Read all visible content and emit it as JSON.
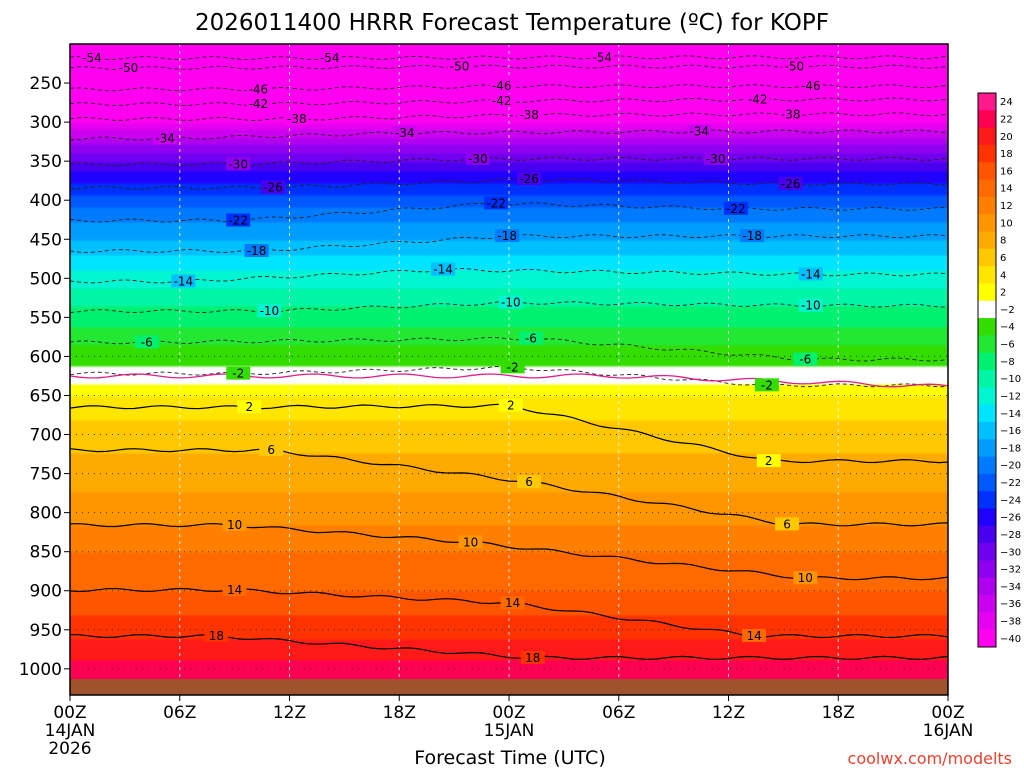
{
  "chart_data": {
    "type": "heatmap",
    "title": "2026011400 HRRR Forecast Temperature (ºC) for KOPF",
    "xlabel": "Forecast Time (UTC)",
    "ylabel": "",
    "credit": "coolwx.com/modelts",
    "x_ticks": [
      {
        "hour": 0,
        "label": "00Z",
        "sub1": "14JAN",
        "sub2": "2026"
      },
      {
        "hour": 6,
        "label": "06Z",
        "sub1": "",
        "sub2": ""
      },
      {
        "hour": 12,
        "label": "12Z",
        "sub1": "",
        "sub2": ""
      },
      {
        "hour": 18,
        "label": "18Z",
        "sub1": "",
        "sub2": ""
      },
      {
        "hour": 24,
        "label": "00Z",
        "sub1": "15JAN",
        "sub2": ""
      },
      {
        "hour": 30,
        "label": "06Z",
        "sub1": "",
        "sub2": ""
      },
      {
        "hour": 36,
        "label": "12Z",
        "sub1": "",
        "sub2": ""
      },
      {
        "hour": 42,
        "label": "18Z",
        "sub1": "",
        "sub2": ""
      },
      {
        "hour": 48,
        "label": "00Z",
        "sub1": "16JAN",
        "sub2": ""
      }
    ],
    "x_range_hours": [
      0,
      48
    ],
    "y_ticks_hpa": [
      250,
      300,
      350,
      400,
      450,
      500,
      550,
      600,
      650,
      700,
      750,
      800,
      850,
      900,
      950,
      1000
    ],
    "y_range_hpa": [
      200,
      1013
    ],
    "colorbar": {
      "units": "ºC",
      "labels": [
        "24",
        "22",
        "20",
        "18",
        "16",
        "14",
        "12",
        "10",
        "8",
        "6",
        "4",
        "2",
        "−2",
        "−4",
        "−6",
        "−8",
        "−10",
        "−12",
        "−14",
        "−16",
        "−18",
        "−20",
        "−22",
        "−24",
        "−26",
        "−28",
        "−30",
        "−32",
        "−34",
        "−36",
        "−38",
        "−40"
      ],
      "colors": [
        "#ff1a8c",
        "#ff0055",
        "#ff1a1a",
        "#ff3300",
        "#ff5500",
        "#ff6a00",
        "#ff8000",
        "#ff9500",
        "#ffaa00",
        "#ffc800",
        "#ffe600",
        "#ffff00",
        "#ffffff",
        "#33dd00",
        "#22e833",
        "#00f070",
        "#00f5a5",
        "#00f5d0",
        "#00e5ff",
        "#00c0ff",
        "#009dff",
        "#007aff",
        "#0058ff",
        "#0030ff",
        "#2000ff",
        "#4a00f0",
        "#7000f0",
        "#9000f0",
        "#b000f0",
        "#cc00f0",
        "#e600f0",
        "#ff00f0"
      ]
    },
    "temperature_profile": [
      {
        "hpa": 1000,
        "temp_c": 21
      },
      {
        "hpa": 950,
        "temp_c": 17
      },
      {
        "hpa": 900,
        "temp_c": 14
      },
      {
        "hpa": 850,
        "temp_c": 12
      },
      {
        "hpa": 800,
        "temp_c": 9
      },
      {
        "hpa": 750,
        "temp_c": 7
      },
      {
        "hpa": 700,
        "temp_c": 5
      },
      {
        "hpa": 650,
        "temp_c": 2
      },
      {
        "hpa": 625,
        "temp_c": 0
      },
      {
        "hpa": 600,
        "temp_c": -2
      },
      {
        "hpa": 550,
        "temp_c": -6
      },
      {
        "hpa": 500,
        "temp_c": -10
      },
      {
        "hpa": 450,
        "temp_c": -15
      },
      {
        "hpa": 400,
        "temp_c": -20
      },
      {
        "hpa": 350,
        "temp_c": -27
      },
      {
        "hpa": 300,
        "temp_c": -37
      },
      {
        "hpa": 250,
        "temp_c": -46
      },
      {
        "hpa": 225,
        "temp_c": -50
      },
      {
        "hpa": 210,
        "temp_c": -54
      }
    ],
    "contour_labels": [
      {
        "value": "-54",
        "hour": 1.2,
        "hpa": 218
      },
      {
        "value": "-54",
        "hour": 14.2,
        "hpa": 218
      },
      {
        "value": "-54",
        "hour": 29.1,
        "hpa": 217
      },
      {
        "value": "-50",
        "hour": 3.2,
        "hpa": 231
      },
      {
        "value": "-50",
        "hour": 21.3,
        "hpa": 229
      },
      {
        "value": "-50",
        "hour": 39.6,
        "hpa": 229
      },
      {
        "value": "-46",
        "hour": 10.3,
        "hpa": 258
      },
      {
        "value": "-46",
        "hour": 23.6,
        "hpa": 254
      },
      {
        "value": "-46",
        "hour": 40.5,
        "hpa": 254
      },
      {
        "value": "-42",
        "hour": 10.3,
        "hpa": 277
      },
      {
        "value": "-42",
        "hour": 23.6,
        "hpa": 273
      },
      {
        "value": "-42",
        "hour": 37.6,
        "hpa": 271
      },
      {
        "value": "-38",
        "hour": 12.4,
        "hpa": 296
      },
      {
        "value": "-38",
        "hour": 25.1,
        "hpa": 291
      },
      {
        "value": "-38",
        "hour": 39.4,
        "hpa": 290
      },
      {
        "value": "-34",
        "hour": 5.2,
        "hpa": 321
      },
      {
        "value": "-34",
        "hour": 18.3,
        "hpa": 314
      },
      {
        "value": "-34",
        "hour": 34.4,
        "hpa": 312
      },
      {
        "value": "-30",
        "hour": 9.2,
        "hpa": 354
      },
      {
        "value": "-30",
        "hour": 22.3,
        "hpa": 347
      },
      {
        "value": "-30",
        "hour": 35.3,
        "hpa": 347
      },
      {
        "value": "-26",
        "hour": 11.1,
        "hpa": 384
      },
      {
        "value": "-26",
        "hour": 25.1,
        "hpa": 373
      },
      {
        "value": "-26",
        "hour": 39.4,
        "hpa": 379
      },
      {
        "value": "-22",
        "hour": 9.2,
        "hpa": 426
      },
      {
        "value": "-22",
        "hour": 23.3,
        "hpa": 404
      },
      {
        "value": "-22",
        "hour": 36.4,
        "hpa": 411
      },
      {
        "value": "-18",
        "hour": 10.2,
        "hpa": 465
      },
      {
        "value": "-18",
        "hour": 23.9,
        "hpa": 446
      },
      {
        "value": "-18",
        "hour": 37.3,
        "hpa": 446
      },
      {
        "value": "-14",
        "hour": 6.2,
        "hpa": 504
      },
      {
        "value": "-14",
        "hour": 20.4,
        "hpa": 489
      },
      {
        "value": "-14",
        "hour": 40.5,
        "hpa": 495
      },
      {
        "value": "-10",
        "hour": 10.9,
        "hpa": 542
      },
      {
        "value": "-10",
        "hour": 24.1,
        "hpa": 531
      },
      {
        "value": "-10",
        "hour": 40.5,
        "hpa": 535
      },
      {
        "value": "-6",
        "hour": 4.2,
        "hpa": 582
      },
      {
        "value": "-6",
        "hour": 25.2,
        "hpa": 577
      },
      {
        "value": "-6",
        "hour": 40.2,
        "hpa": 604
      },
      {
        "value": "-2",
        "hour": 9.2,
        "hpa": 622
      },
      {
        "value": "-2",
        "hour": 24.2,
        "hpa": 614
      },
      {
        "value": "-2",
        "hour": 38.1,
        "hpa": 637
      },
      {
        "value": "2",
        "hour": 9.8,
        "hpa": 665
      },
      {
        "value": "2",
        "hour": 24.1,
        "hpa": 663
      },
      {
        "value": "2",
        "hour": 38.2,
        "hpa": 734
      },
      {
        "value": "6",
        "hour": 11.0,
        "hpa": 720
      },
      {
        "value": "6",
        "hour": 25.1,
        "hpa": 761
      },
      {
        "value": "6",
        "hour": 39.2,
        "hpa": 815
      },
      {
        "value": "10",
        "hour": 9.0,
        "hpa": 816
      },
      {
        "value": "10",
        "hour": 21.9,
        "hpa": 838
      },
      {
        "value": "10",
        "hour": 40.2,
        "hpa": 884
      },
      {
        "value": "14",
        "hour": 9.0,
        "hpa": 899
      },
      {
        "value": "14",
        "hour": 24.2,
        "hpa": 916
      },
      {
        "value": "14",
        "hour": 37.4,
        "hpa": 958
      },
      {
        "value": "18",
        "hour": 8.0,
        "hpa": 958
      },
      {
        "value": "18",
        "hour": 25.3,
        "hpa": 986
      }
    ]
  }
}
